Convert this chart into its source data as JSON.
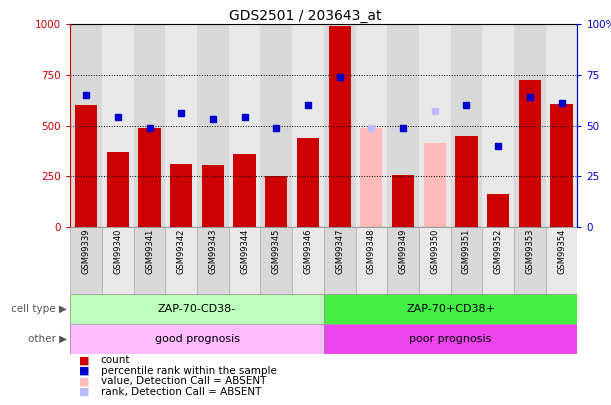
{
  "title": "GDS2501 / 203643_at",
  "samples": [
    "GSM99339",
    "GSM99340",
    "GSM99341",
    "GSM99342",
    "GSM99343",
    "GSM99344",
    "GSM99345",
    "GSM99346",
    "GSM99347",
    "GSM99348",
    "GSM99349",
    "GSM99350",
    "GSM99351",
    "GSM99352",
    "GSM99353",
    "GSM99354"
  ],
  "count_values": [
    600,
    370,
    490,
    310,
    305,
    360,
    250,
    440,
    990,
    490,
    255,
    415,
    450,
    160,
    725,
    605
  ],
  "rank_values": [
    65,
    54,
    49,
    56,
    53,
    54,
    49,
    60,
    74,
    49,
    49,
    57,
    60,
    40,
    64,
    61
  ],
  "absent_flags": [
    false,
    false,
    false,
    false,
    false,
    false,
    false,
    false,
    false,
    true,
    false,
    true,
    false,
    false,
    false,
    false
  ],
  "cell_type_labels": [
    "ZAP-70-CD38-",
    "ZAP-70+CD38+"
  ],
  "cell_type_colors": [
    "#bbffbb",
    "#44ee44"
  ],
  "cell_type_split": 8,
  "other_labels": [
    "good prognosis",
    "poor prognosis"
  ],
  "other_colors": [
    "#ffbbff",
    "#ee44ee"
  ],
  "other_split": 8,
  "bar_color_present": "#cc0000",
  "bar_color_absent": "#ffbbbb",
  "rank_color_present": "#0000cc",
  "rank_color_absent": "#bbbbff",
  "ylim_left": [
    0,
    1000
  ],
  "ylim_right": [
    0,
    100
  ],
  "yticks_left": [
    0,
    250,
    500,
    750,
    1000
  ],
  "ytick_labels_left": [
    "0",
    "250",
    "500",
    "750",
    "1000"
  ],
  "ytick_labels_right": [
    "0",
    "25",
    "50",
    "75",
    "100%"
  ],
  "legend_items": [
    {
      "color": "#cc0000",
      "label": "count"
    },
    {
      "color": "#0000cc",
      "label": "percentile rank within the sample"
    },
    {
      "color": "#ffbbbb",
      "label": "value, Detection Call = ABSENT"
    },
    {
      "color": "#bbbbff",
      "label": "rank, Detection Call = ABSENT"
    }
  ],
  "background_color": "#ffffff",
  "left_axis_color": "#cc0000",
  "right_axis_color": "#0000cc",
  "col_bg_even": "#d8d8d8",
  "col_bg_odd": "#e8e8e8"
}
